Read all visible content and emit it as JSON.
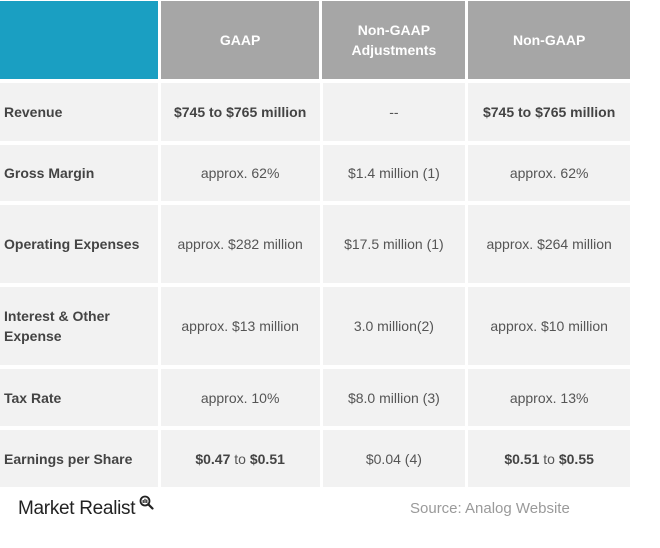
{
  "header": {
    "col1": "GAAP",
    "col2": "Non-GAAP Adjustments",
    "col3": "Non-GAAP"
  },
  "rows": [
    {
      "label": "Revenue",
      "gaap": "$745 to $765 million",
      "adj": "--",
      "nongaap": "$745 to $765 million"
    },
    {
      "label": "Gross Margin",
      "gaap": "approx. 62%",
      "adj": "$1.4 million (1)",
      "nongaap": "approx. 62%"
    },
    {
      "label": "Operating Expenses",
      "gaap": "approx. $282 million",
      "adj": "$17.5 million (1)",
      "nongaap": "approx. $264 million"
    },
    {
      "label": "Interest & Other Expense",
      "gaap": "approx. $13 million",
      "adj": "3.0 million(2)",
      "nongaap": "approx. $10 million"
    },
    {
      "label": "Tax Rate",
      "gaap": "approx. 10%",
      "adj": "$8.0 million (3)",
      "nongaap": "approx. 13%"
    },
    {
      "label": "Earnings per Share",
      "gaap_low": "$0.47",
      "gaap_to": "to",
      "gaap_high": "$0.51",
      "adj": "$0.04 (4)",
      "nongaap_low": "$0.51",
      "nongaap_to": "to",
      "nongaap_high": "$0.55"
    }
  ],
  "footer": {
    "logo": "Market Realist",
    "source": "Source: Analog Website"
  },
  "colors": {
    "corner": "#1a9fc2",
    "header": "#a6a6a6",
    "cell": "#f2f2f2"
  }
}
